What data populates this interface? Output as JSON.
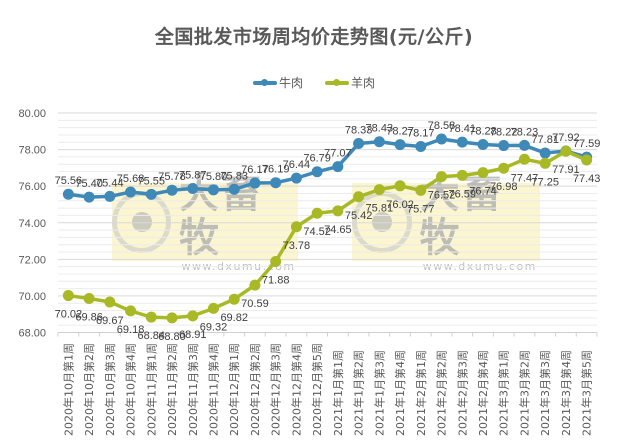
{
  "chart_data": {
    "type": "line",
    "title": "全国批发市场周均价走势图(元/公斤)",
    "xlabel": "",
    "ylabel": "",
    "ylim": [
      68,
      80
    ],
    "yticks": [
      "80.00",
      "78.00",
      "76.00",
      "74.00",
      "72.00",
      "70.00",
      "68.00"
    ],
    "grid": true,
    "legend_position": "top",
    "categories": [
      "2020年10月第1周",
      "2020年10月第2周",
      "2020年10月第3周",
      "2020年10月第4周",
      "2020年11月第1周",
      "2020年11月第2周",
      "2020年11月第3周",
      "2020年11月第4周",
      "2020年12月第1周",
      "2020年12月第2周",
      "2020年12月第3周",
      "2020年12月第4周",
      "2020年12月第5周",
      "2021年1月第1周",
      "2021年1月第2周",
      "2021年1月第3周",
      "2021年1月第4周",
      "2021年2月第1周",
      "2021年2月第2周",
      "2021年2月第3周",
      "2021年2月第4周",
      "2021年3月第1周",
      "2021年3月第2周",
      "2021年3月第3周",
      "2021年3月第4周",
      "2021年3月第5周"
    ],
    "series": [
      {
        "name": "牛肉",
        "color": "#3f89b8",
        "label_position": "above",
        "values": [
          75.56,
          75.4,
          75.44,
          75.68,
          75.55,
          75.78,
          75.87,
          75.8,
          75.83,
          76.17,
          76.19,
          76.44,
          76.79,
          77.07,
          78.33,
          78.43,
          78.27,
          78.17,
          78.58,
          78.41,
          78.28,
          78.22,
          78.23,
          77.81,
          77.92,
          77.59
        ]
      },
      {
        "name": "羊肉",
        "color": "#a9b925",
        "label_position": "below",
        "values": [
          70.02,
          69.86,
          69.67,
          69.18,
          68.84,
          68.8,
          68.91,
          69.32,
          69.82,
          70.59,
          71.88,
          73.78,
          74.52,
          74.65,
          75.42,
          75.81,
          76.02,
          75.77,
          76.52,
          76.59,
          76.74,
          76.98,
          77.47,
          77.25,
          77.91,
          77.43
        ]
      }
    ]
  },
  "watermark": {
    "text": "大畜牧",
    "url": "www.dxumu.com"
  }
}
